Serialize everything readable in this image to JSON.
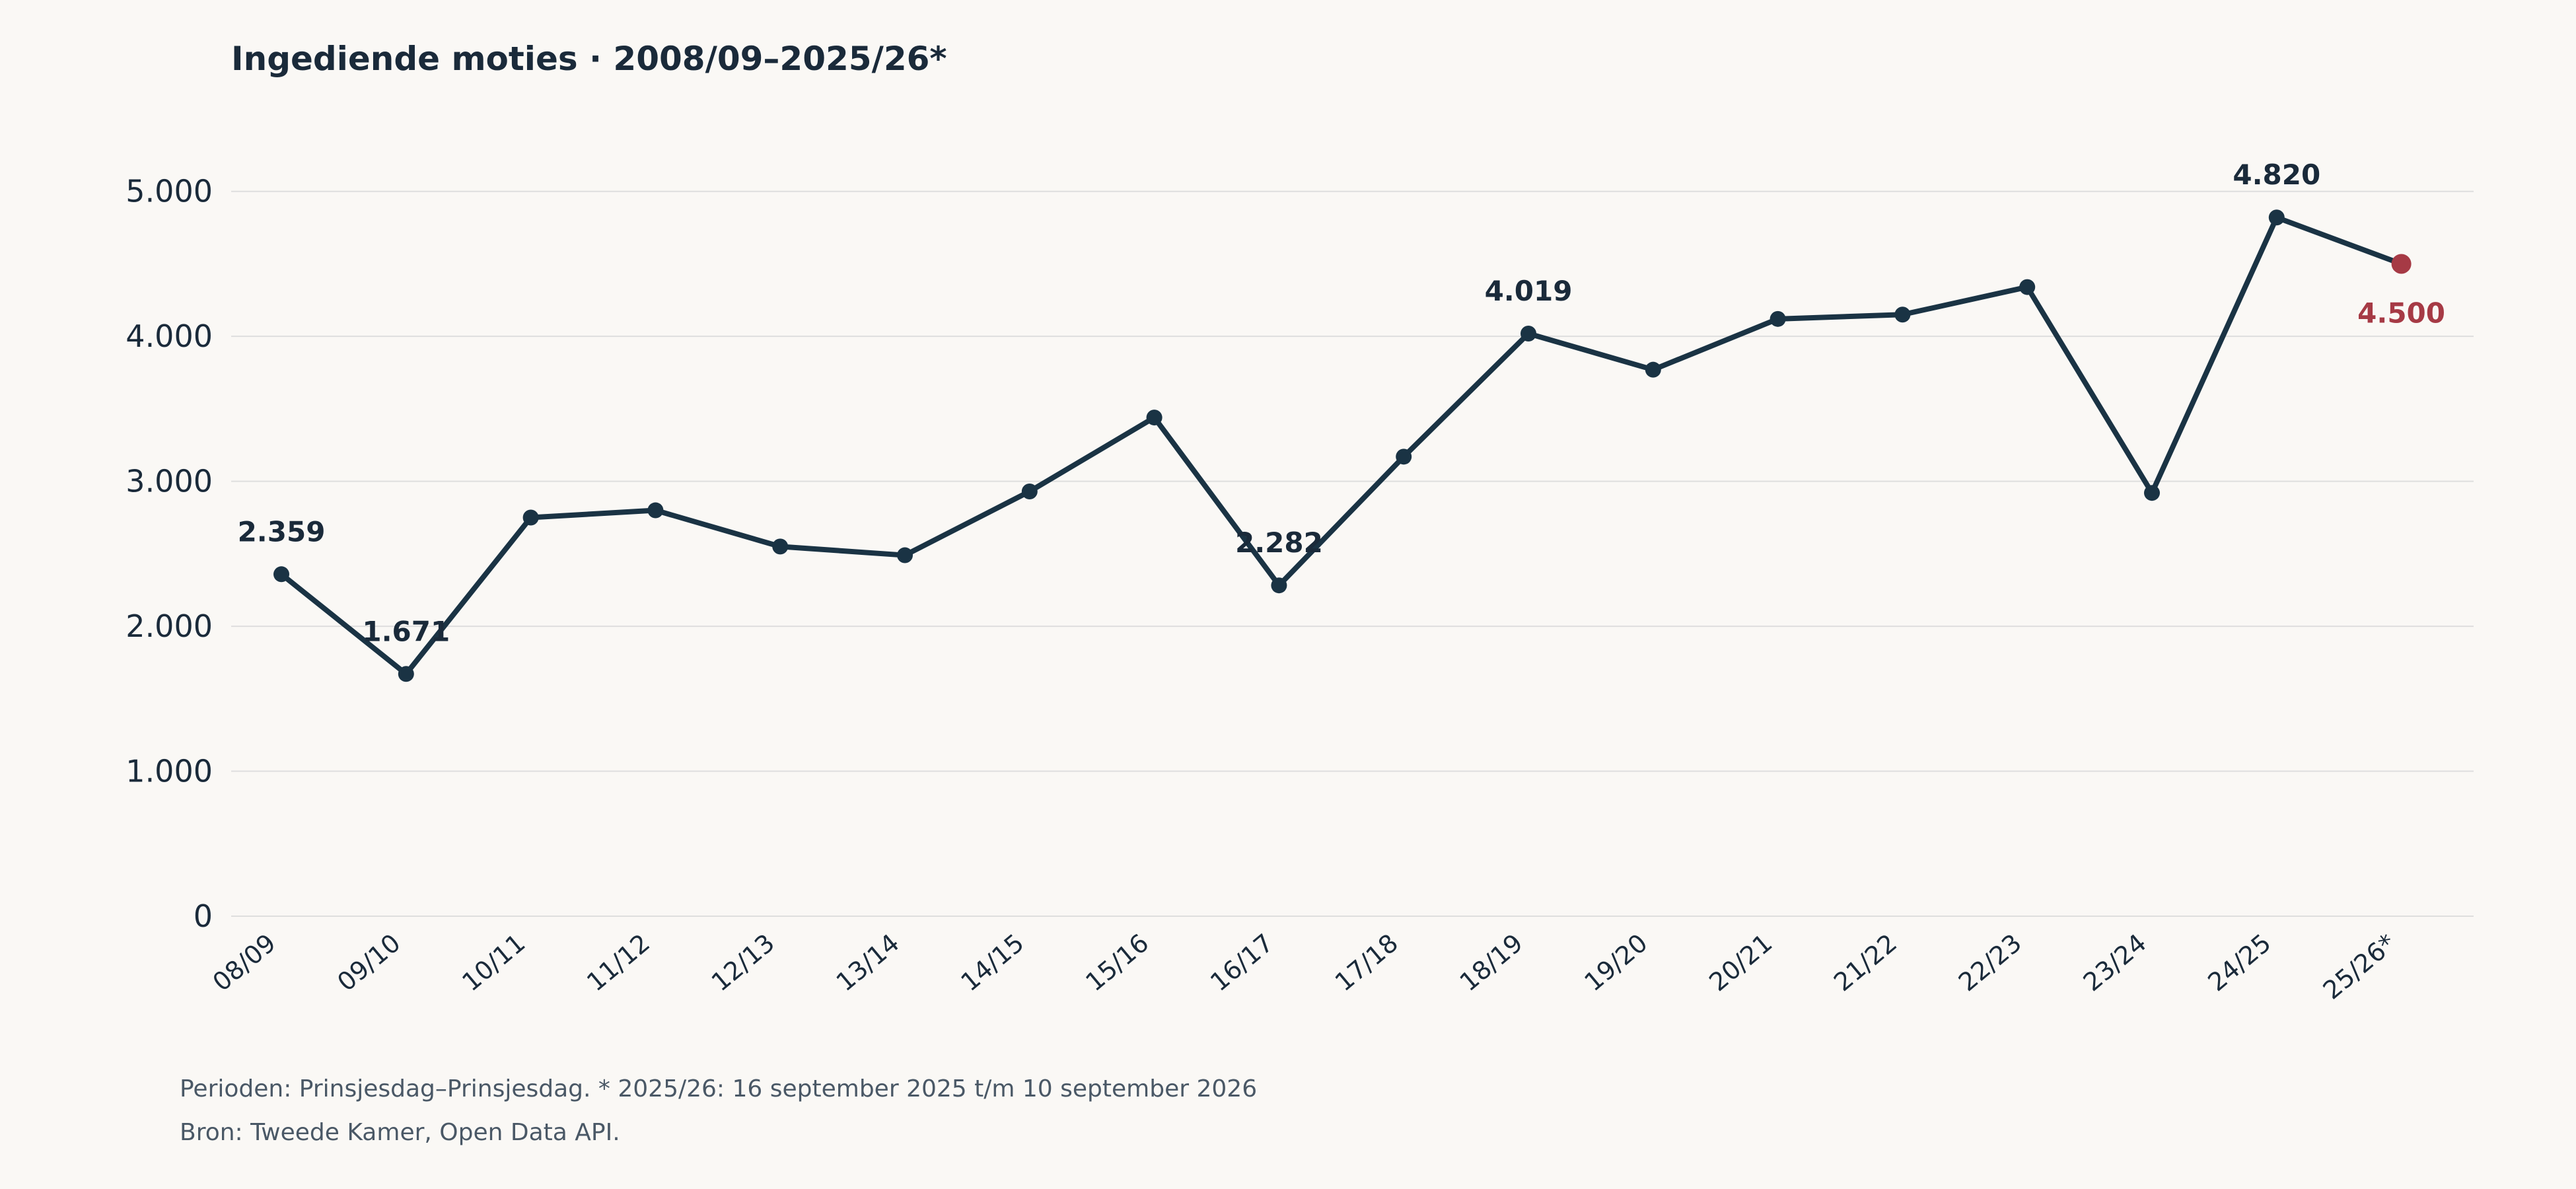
{
  "chart_data": {
    "type": "line",
    "title": "Ingediende moties · 2008/09–2025/26*",
    "categories": [
      "08/09",
      "09/10",
      "10/11",
      "11/12",
      "12/13",
      "13/14",
      "14/15",
      "15/16",
      "16/17",
      "17/18",
      "18/19",
      "19/20",
      "20/21",
      "21/22",
      "22/23",
      "23/24",
      "24/25",
      "25/26*"
    ],
    "values": [
      2359,
      1671,
      2750,
      2800,
      2550,
      2490,
      2930,
      3440,
      2282,
      3170,
      4019,
      3770,
      4120,
      4150,
      4340,
      2920,
      4820,
      4500
    ],
    "ylim": [
      0,
      5500
    ],
    "yticks": [
      0,
      1000,
      2000,
      3000,
      4000,
      5000
    ],
    "ytick_labels": [
      "0",
      "1.000",
      "2.000",
      "3.000",
      "4.000",
      "5.000"
    ],
    "grid": true,
    "annotations": [
      {
        "index": 0,
        "label": "2.359"
      },
      {
        "index": 1,
        "label": "1.671"
      },
      {
        "index": 8,
        "label": "2.282"
      },
      {
        "index": 10,
        "label": "4.019"
      },
      {
        "index": 16,
        "label": "4.820"
      },
      {
        "index": 17,
        "label": "4.500",
        "highlight": true
      }
    ]
  },
  "footnote": {
    "line1": "Perioden: Prinsjesdag–Prinsjesdag. * 2025/26: 16 september 2025 t/m 10 september 2026",
    "line2": "Bron: Tweede Kamer, Open Data API."
  },
  "colors": {
    "line": "#1a3344",
    "highlight": "#a63a45",
    "grid": "#dedede",
    "text": "#1a2a3a",
    "footnote": "#4a5866",
    "background": "#faf8f5"
  }
}
